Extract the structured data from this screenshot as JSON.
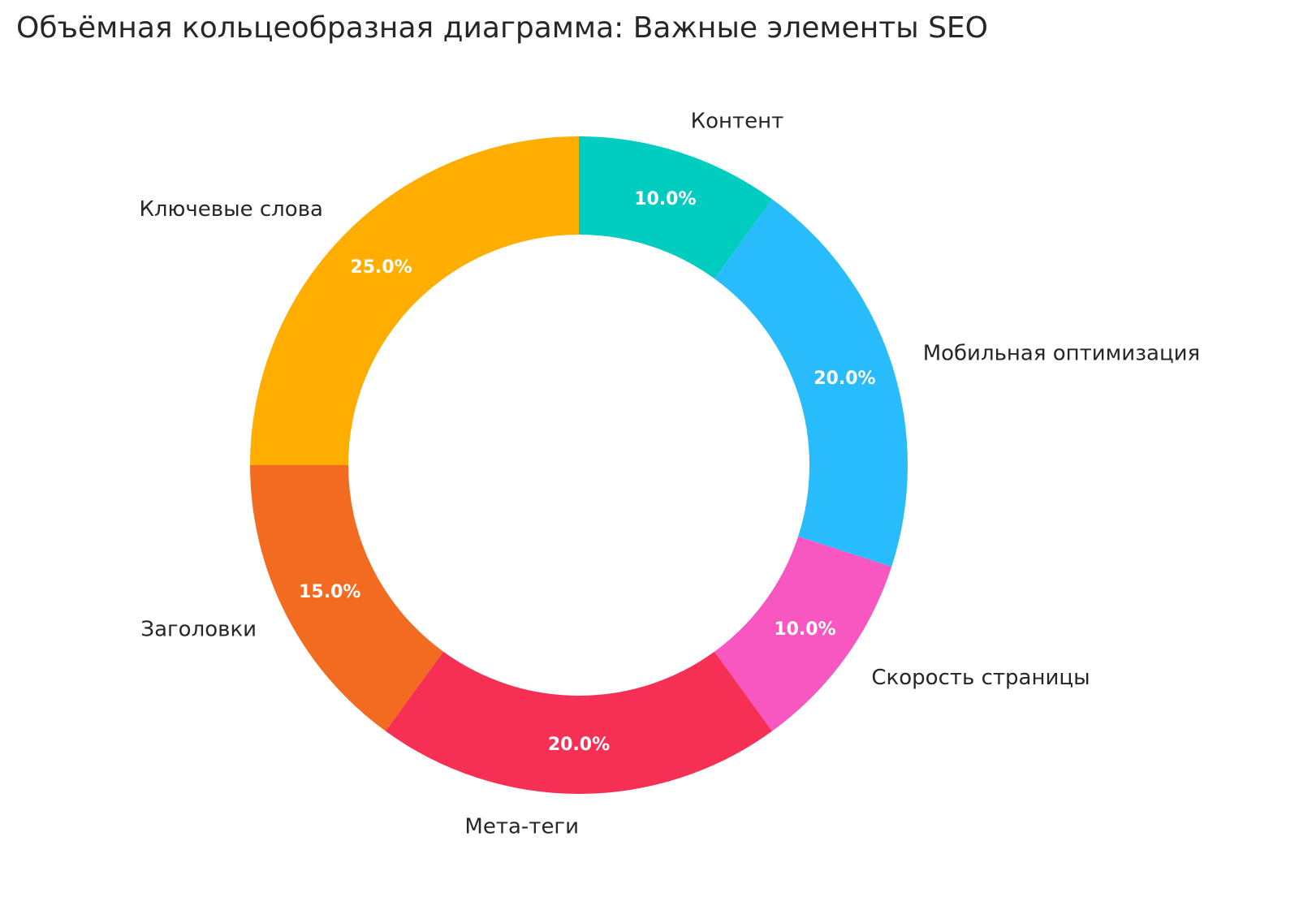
{
  "chart_data": {
    "type": "pie",
    "variant": "donut",
    "title": "Объёмная кольцеобразная диаграмма: Важные элементы SEO",
    "categories": [
      "Ключевые слова",
      "Заголовки",
      "Мета-теги",
      "Скорость страницы",
      "Мобильная оптимизация",
      "Контент"
    ],
    "values": [
      25,
      15,
      20,
      10,
      20,
      10
    ],
    "value_labels": [
      "25.0%",
      "15.0%",
      "20.0%",
      "10.0%",
      "20.0%",
      "10.0%"
    ],
    "colors": [
      "#FFAE00",
      "#F26B21",
      "#F53054",
      "#F857C1",
      "#29BCFC",
      "#00CCC0"
    ],
    "start_angle_deg": 90,
    "direction": "counterclockwise",
    "legend": "none"
  }
}
